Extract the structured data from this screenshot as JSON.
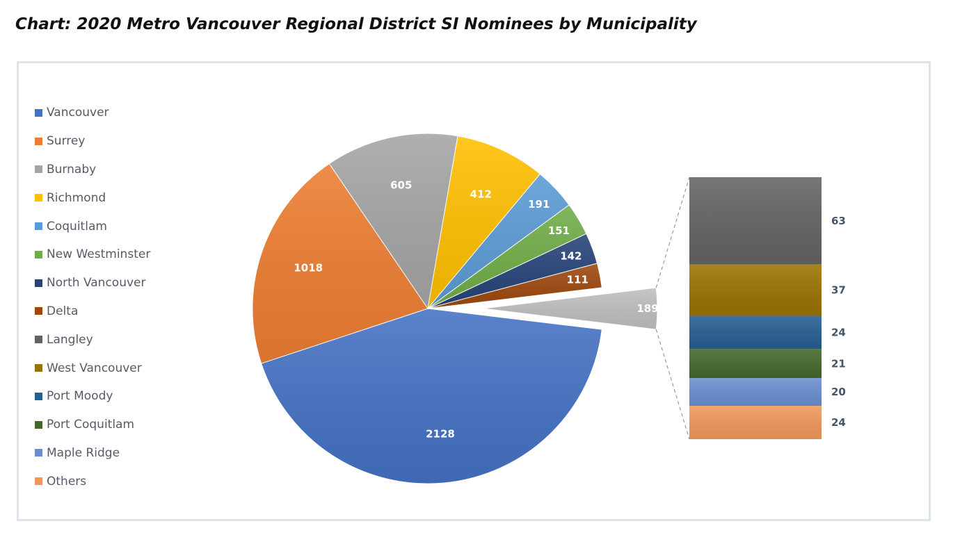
{
  "page": {
    "title": "Chart: 2020 Metro Vancouver Regional District SI Nominees by Municipality"
  },
  "chart_data": {
    "type": "pie",
    "subtype": "bar-of-pie",
    "title": "",
    "legend": {
      "placement": "left",
      "entries": [
        "Vancouver",
        "Surrey",
        "Burnaby",
        "Richmond",
        "Coquitlam",
        "New Westminster",
        "North Vancouver",
        "Delta",
        "Langley",
        "West Vancouver",
        "Port Moody",
        "Port Coquitlam",
        "Maple Ridge",
        "Others"
      ]
    },
    "pie_slices": [
      {
        "name": "Vancouver",
        "value": 2128,
        "color": "#4472c4"
      },
      {
        "name": "Surrey",
        "value": 1018,
        "color": "#ed7d31"
      },
      {
        "name": "Burnaby",
        "value": 605,
        "color": "#a5a5a5"
      },
      {
        "name": "Richmond",
        "value": 412,
        "color": "#ffc000"
      },
      {
        "name": "Coquitlam",
        "value": 191,
        "color": "#5b9bd5"
      },
      {
        "name": "New Westminster",
        "value": 151,
        "color": "#70ad47"
      },
      {
        "name": "North Vancouver",
        "value": 142,
        "color": "#264478"
      },
      {
        "name": "Delta",
        "value": 111,
        "color": "#9e480e"
      },
      {
        "name": "",
        "value": 189,
        "color": "#bfbfbf",
        "is_aggregate": true
      }
    ],
    "bar_segments": [
      {
        "name": "Langley",
        "value": 63,
        "color": "#636363"
      },
      {
        "name": "West Vancouver",
        "value": 37,
        "color": "#997300"
      },
      {
        "name": "Port Moody",
        "value": 24,
        "color": "#255e91"
      },
      {
        "name": "Port Coquitlam",
        "value": 21,
        "color": "#43682b"
      },
      {
        "name": "Maple Ridge",
        "value": 20,
        "color": "#698ed0"
      },
      {
        "name": "Others",
        "value": 24,
        "color": "#f1975a"
      }
    ]
  }
}
